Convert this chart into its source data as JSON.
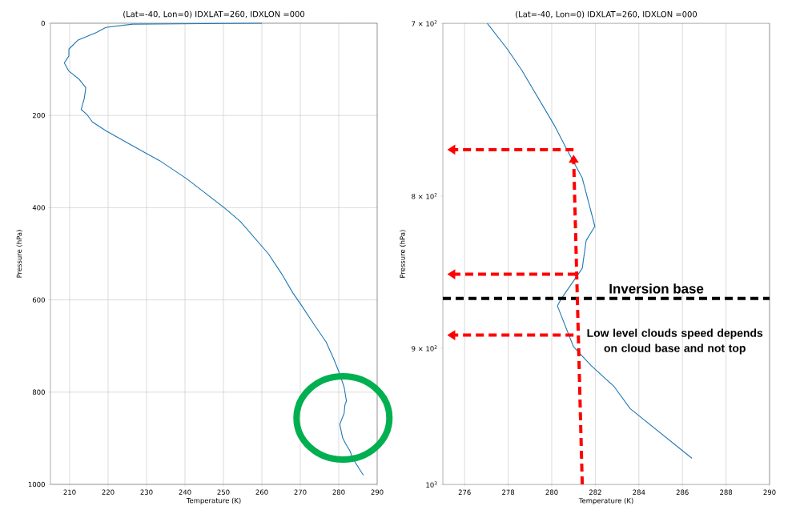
{
  "chart_data": [
    {
      "type": "line",
      "title": "(Lat=-40, Lon=0) IDXLAT=260, IDXLON =000",
      "xlabel": "Temperature (K)",
      "ylabel": "Pressure (hPa)",
      "series": [
        {
          "color": "#1f77b4",
          "x": [
            260,
            226.4,
            219.4,
            217,
            212.1,
            209.8,
            209.8,
            208.6,
            209.7,
            212.4,
            214.2,
            213.8,
            213,
            214.5,
            215.9,
            219.4,
            224.3,
            229.9,
            233.4,
            240.4,
            250.2,
            254.4,
            261.7,
            265.2,
            268,
            270.4,
            273.9,
            276.7,
            278.6,
            280.1,
            280.7,
            281.4,
            282,
            281.6,
            281.4,
            280.4,
            280.3,
            281,
            281.8,
            282.9,
            283.6,
            286.4
          ],
          "values": [
            0,
            2,
            9,
            20,
            37,
            56,
            71,
            86,
            103,
            121,
            140,
            163,
            187,
            198,
            214,
            233,
            256,
            282,
            298,
            337,
            400,
            430,
            500,
            544,
            584,
            613,
            657,
            691,
            726,
            757,
            772,
            789,
            819,
            828,
            846,
            867,
            871,
            899,
            912,
            927,
            943,
            980
          ]
        }
      ],
      "xlim": [
        205,
        290
      ],
      "xticks": [
        210,
        220,
        230,
        240,
        250,
        260,
        270,
        280,
        290
      ],
      "ylim": [
        1000,
        0
      ],
      "yticks": [
        0,
        200,
        400,
        600,
        800,
        1000
      ],
      "grid": true
    },
    {
      "type": "line",
      "title": "(Lat=-40, Lon=0) IDXLAT=260, IDXLON =000",
      "xlabel": "Temperature (K)",
      "ylabel": "Pressure (hPa)",
      "series": [
        {
          "color": "#1f77b4",
          "x": [
            277.04,
            277.96,
            278.63,
            280.1,
            280.7,
            281.4,
            281.98,
            281.58,
            281.4,
            280.4,
            280.26,
            281.0,
            281.8,
            282.86,
            283.6,
            286.44
          ],
          "values": [
            700,
            714,
            726,
            757,
            772,
            789,
            819,
            828,
            846,
            867,
            871,
            899,
            912,
            927,
            943,
            980
          ]
        }
      ],
      "xlim": [
        275,
        290
      ],
      "xticks": [
        276,
        278,
        280,
        282,
        284,
        286,
        288,
        290
      ],
      "ylim": [
        1000,
        700
      ],
      "log": "y",
      "yticks": [
        {
          "value": 700,
          "label": "7 × 10$^{2}$"
        },
        {
          "value": 800,
          "label": "8 × 10$^{2}$"
        },
        {
          "value": 900,
          "label": "9 × 10$^{2}$"
        },
        {
          "value": 1000,
          "label": "10$^{3}$"
        }
      ],
      "grid": "x",
      "ref_lines": [
        {
          "axis": "y",
          "value": 866,
          "label": "Inversion base",
          "color": "#000000",
          "line_style": "dashed"
        }
      ],
      "annotations": [
        "Low level clouds speed depends on cloud base and not top"
      ]
    }
  ]
}
